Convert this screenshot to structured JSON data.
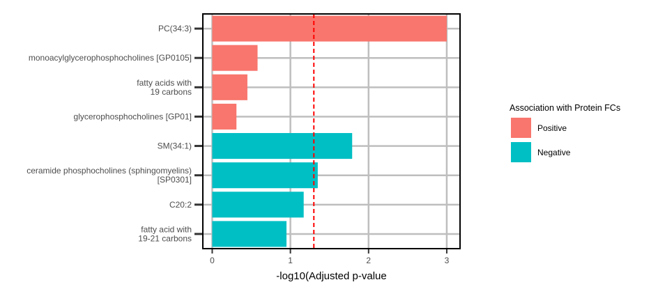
{
  "chart_data": {
    "type": "bar",
    "orientation": "horizontal",
    "categories": [
      [
        "PC(34:3)"
      ],
      [
        "monoacylglycerophosphocholines [GP0105]"
      ],
      [
        "fatty acids with",
        "19 carbons"
      ],
      [
        "glycerophosphocholines [GP01]"
      ],
      [
        "SM(34:1)"
      ],
      [
        "ceramide phosphocholines (sphingomyelins)",
        "[SP0301]"
      ],
      [
        "C20:2"
      ],
      [
        "fatty acid with",
        "19-21 carbons"
      ]
    ],
    "values": [
      3.0,
      0.58,
      0.45,
      0.31,
      1.79,
      1.35,
      1.17,
      0.95
    ],
    "groups": [
      "Positive",
      "Positive",
      "Positive",
      "Positive",
      "Negative",
      "Negative",
      "Negative",
      "Negative"
    ],
    "xlabel": "-log10(Adjusted p-value",
    "ylabel": "",
    "xlim": [
      -0.12,
      3.17
    ],
    "xticks": [
      0,
      1,
      2,
      3
    ],
    "grid": true,
    "reference_line": {
      "x": 1.3,
      "color": "#ff0000",
      "style": "dashed"
    },
    "legend": {
      "title": "Association with Protein FCs",
      "placement": "right",
      "entries": [
        {
          "label": "Positive",
          "color": "#F8766D"
        },
        {
          "label": "Negative",
          "color": "#00BFC4"
        }
      ]
    }
  }
}
